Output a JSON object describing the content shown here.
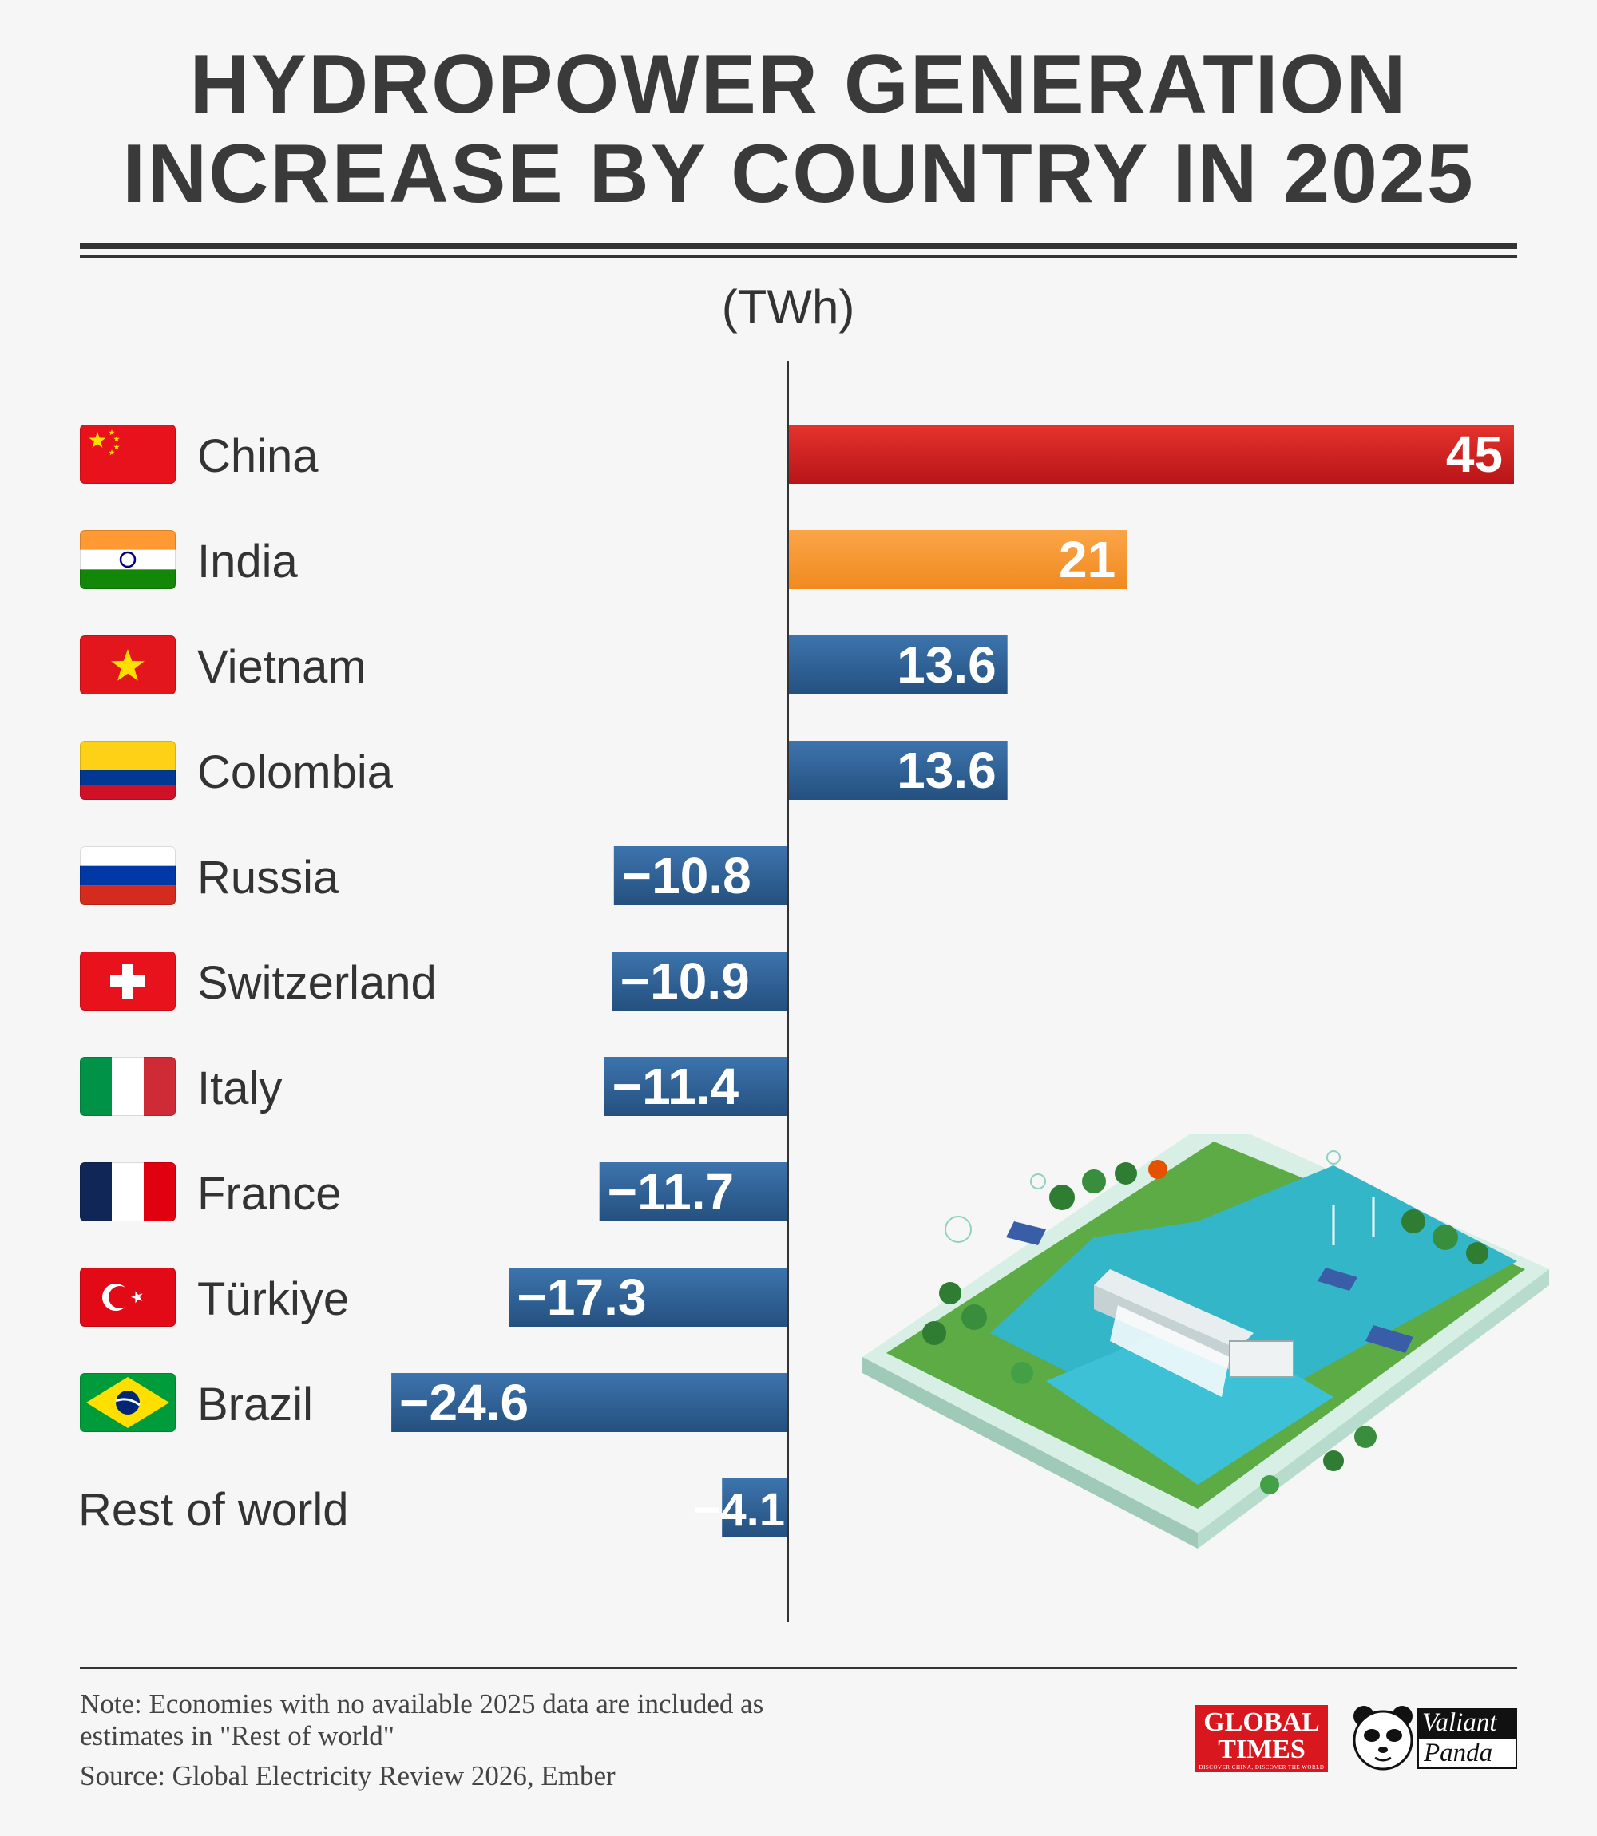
{
  "title": {
    "line1": "HYDROPOWER GENERATION",
    "line2": "INCREASE BY COUNTRY IN 2025"
  },
  "chart_data": {
    "type": "bar",
    "orientation": "horizontal",
    "unit": "(TWh)",
    "categories": [
      "China",
      "India",
      "Vietnam",
      "Colombia",
      "Russia",
      "Switzerland",
      "Italy",
      "France",
      "Türkiye",
      "Brazil",
      "Rest of world"
    ],
    "values": [
      45,
      21,
      13.6,
      13.6,
      -10.8,
      -10.9,
      -11.4,
      -11.7,
      -17.3,
      -24.6,
      -4.1
    ],
    "value_labels": [
      "45",
      "21",
      "13.6",
      "13.6",
      "−10.8",
      "−10.9",
      "−11.4",
      "−11.7",
      "−17.3",
      "−24.6",
      "−4.1"
    ],
    "flags": [
      "china-flag-icon",
      "india-flag-icon",
      "vietnam-flag-icon",
      "colombia-flag-icon",
      "russia-flag-icon",
      "switzerland-flag-icon",
      "italy-flag-icon",
      "france-flag-icon",
      "turkiye-flag-icon",
      "brazil-flag-icon",
      null
    ],
    "colors": {
      "China": "#d31d20",
      "India": "#f99a34",
      "default": "#2f6197"
    },
    "xlim": [
      -24.6,
      45
    ],
    "grid": false,
    "legend": "none"
  },
  "footnote": {
    "note": "Note: Economies with no available 2025 data are included as estimates in \"Rest of world\"",
    "source": "Source: Global Electricity Review 2026, Ember"
  },
  "logos": {
    "global_times": {
      "line1": "GLOBAL",
      "line2": "TIMES",
      "tagline": "DISCOVER CHINA, DISCOVER THE WORLD"
    },
    "valiant_panda": {
      "line1": "Valiant",
      "line2": "Panda"
    }
  },
  "illustration": "hydropower-dam-diorama-icon"
}
